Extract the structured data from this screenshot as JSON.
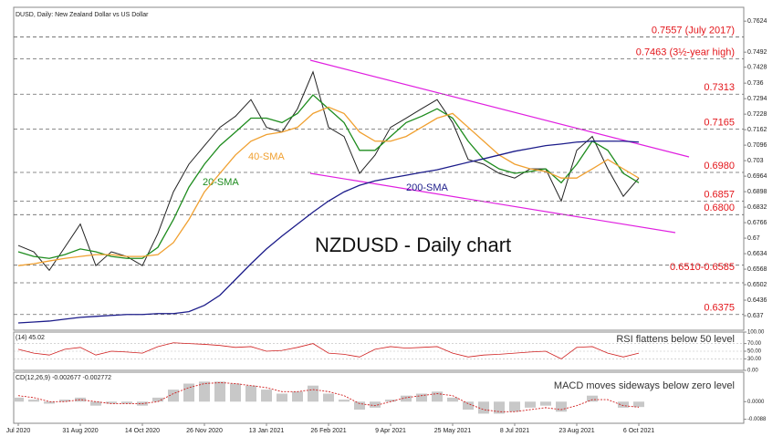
{
  "chart_data": {
    "type": "line",
    "title": "DUSD, Daily:  New Zealand Dollar vs US Dollar",
    "chart_label": "NZDUSD - Daily chart",
    "categories": [
      "Jul 2020",
      null,
      null,
      null,
      "31 Aug 2020",
      null,
      null,
      null,
      "14 Oct 2020",
      null,
      null,
      null,
      "26 Nov 2020",
      null,
      null,
      null,
      "13 Jan 2021",
      null,
      null,
      null,
      "26 Feb 2021",
      null,
      null,
      null,
      "9 Apr 2021",
      null,
      null,
      null,
      "25 May 2021",
      null,
      null,
      null,
      "8 Jul 2021",
      null,
      null,
      null,
      "23 Aug 2021",
      null,
      null,
      null,
      "6 Oct 2021"
    ],
    "series": [
      {
        "color": "#222222",
        "values": [
          0.6669,
          0.6642,
          0.6563,
          0.6661,
          0.676,
          0.6583,
          0.6642,
          0.6622,
          0.6583,
          0.672,
          0.6897,
          0.7015,
          0.7094,
          0.7172,
          0.7219,
          0.729,
          0.7172,
          0.7152,
          0.7251,
          0.7408,
          0.7172,
          0.7133,
          0.6976,
          0.7054,
          0.7172,
          0.7211,
          0.7251,
          0.729,
          0.7192,
          0.7035,
          0.7015,
          0.6976,
          0.6956,
          0.6995,
          0.6995,
          0.6858,
          0.7074,
          0.7133,
          0.6995,
          0.6878,
          0.6956
        ]
      },
      {
        "name": "20-SMA",
        "color": "#1e8c1e",
        "values": [
          0.6642,
          0.6622,
          0.6614,
          0.663,
          0.6654,
          0.6642,
          0.6622,
          0.6614,
          0.6614,
          0.6661,
          0.6779,
          0.6917,
          0.7015,
          0.7094,
          0.7152,
          0.7211,
          0.7211,
          0.7192,
          0.7231,
          0.731,
          0.7251,
          0.7192,
          0.7074,
          0.7074,
          0.7133,
          0.7192,
          0.7219,
          0.7251,
          0.7211,
          0.7113,
          0.7035,
          0.6995,
          0.6976,
          0.6984,
          0.6995,
          0.6936,
          0.7015,
          0.7113,
          0.7074,
          0.6976,
          0.6936
        ]
      },
      {
        "name": "40-SMA",
        "color": "#f0a030",
        "values": [
          0.6583,
          0.6591,
          0.6603,
          0.6614,
          0.6622,
          0.663,
          0.663,
          0.6622,
          0.6622,
          0.663,
          0.6681,
          0.6779,
          0.6897,
          0.6976,
          0.7054,
          0.7113,
          0.7141,
          0.7152,
          0.7172,
          0.7231,
          0.7258,
          0.7231,
          0.7152,
          0.7113,
          0.7113,
          0.7133,
          0.7172,
          0.7211,
          0.7231,
          0.7172,
          0.7113,
          0.7054,
          0.7015,
          0.6995,
          0.6984,
          0.6956,
          0.6956,
          0.6995,
          0.7035,
          0.6995,
          0.6956
        ]
      },
      {
        "name": "200-SMA",
        "color": "#1c1c8a",
        "values": [
          0.6339,
          0.6343,
          0.6347,
          0.6355,
          0.6363,
          0.6367,
          0.6371,
          0.6375,
          0.6375,
          0.6379,
          0.6379,
          0.6387,
          0.6414,
          0.6457,
          0.6524,
          0.6591,
          0.6654,
          0.6709,
          0.676,
          0.6811,
          0.6858,
          0.6897,
          0.6925,
          0.6944,
          0.6956,
          0.6968,
          0.698,
          0.6991,
          0.7007,
          0.7023,
          0.7038,
          0.7054,
          0.707,
          0.7082,
          0.7094,
          0.7101,
          0.7109,
          0.7113,
          0.7113,
          0.7113,
          0.7109
        ]
      }
    ],
    "ylim": [
      0.6308,
      0.7683
    ],
    "yticks": [
      0.7624,
      0.7492,
      0.7428,
      0.736,
      0.7294,
      0.7228,
      0.7162,
      0.7096,
      0.703,
      0.6964,
      0.6898,
      0.6832,
      0.6766,
      0.67,
      0.6634,
      0.6568,
      0.6502,
      0.6436,
      0.637
    ],
    "level_lines": [
      0.7557,
      0.7463,
      0.7313,
      0.7165,
      0.698,
      0.6857,
      0.68,
      0.6585,
      0.651,
      0.6375
    ],
    "level_labels": [
      {
        "value": 0.7557,
        "label": "0.7557 (July 2017)"
      },
      {
        "value": 0.7463,
        "label": "0.7463 (3½-year  high)"
      },
      {
        "value": 0.7313,
        "label": "0.7313"
      },
      {
        "value": 0.7165,
        "label": "0.7165"
      },
      {
        "value": 0.698,
        "label": "0.6980"
      },
      {
        "value": 0.6857,
        "label": "0.6857"
      },
      {
        "value": 0.68,
        "label": "0.6800"
      },
      {
        "value": 0.6548,
        "label": "0.6510-0.6585"
      },
      {
        "value": 0.6375,
        "label": "0.6375"
      }
    ],
    "rsi": {
      "label": "(14) 45.02",
      "note": "RSI flattens below 50 level",
      "color": "#d02020",
      "values": [
        55,
        45,
        40,
        55,
        60,
        40,
        50,
        48,
        45,
        62,
        72,
        70,
        68,
        65,
        60,
        62,
        50,
        52,
        60,
        70,
        45,
        42,
        35,
        55,
        62,
        58,
        60,
        62,
        45,
        35,
        40,
        42,
        45,
        48,
        50,
        30,
        60,
        62,
        45,
        35,
        45.02
      ],
      "ylim": [
        0,
        100
      ],
      "yticks": [
        {
          "value": 100,
          "label": "100.00"
        },
        {
          "value": 70,
          "label": "70.00"
        },
        {
          "value": 50,
          "label": "50.00"
        },
        {
          "value": 30,
          "label": "30.00"
        },
        {
          "value": 0,
          "label": "0.00"
        }
      ]
    },
    "macd": {
      "label": "CD(12,26,9) -0.002677 -0.002772",
      "note": "MACD moves sideways below zero level",
      "color": "#c8c8c8",
      "signal_color": "#d02020",
      "values": [
        0.002,
        0.001,
        -0.001,
        0.001,
        0.002,
        -0.002,
        -0.001,
        -0.001,
        -0.002,
        0.002,
        0.006,
        0.009,
        0.01,
        0.01,
        0.009,
        0.008,
        0.006,
        0.004,
        0.005,
        0.008,
        0.004,
        0.001,
        -0.004,
        -0.003,
        0.001,
        0.003,
        0.004,
        0.005,
        0.002,
        -0.004,
        -0.006,
        -0.006,
        -0.005,
        -0.003,
        -0.002,
        -0.005,
        0.0,
        0.003,
        0.0,
        -0.003,
        -0.002677
      ],
      "signal": [
        0.003,
        0.002,
        0.0,
        0.0,
        0.001,
        0.0,
        -0.001,
        -0.001,
        -0.001,
        0.0,
        0.004,
        0.007,
        0.009,
        0.0095,
        0.009,
        0.008,
        0.007,
        0.005,
        0.005,
        0.006,
        0.005,
        0.003,
        -0.001,
        -0.002,
        0.0,
        0.002,
        0.003,
        0.004,
        0.003,
        -0.001,
        -0.004,
        -0.005,
        -0.005,
        -0.004,
        -0.003,
        -0.004,
        -0.002,
        0.001,
        0.001,
        -0.002,
        -0.002772
      ],
      "ylim": [
        -0.0108,
        0.0147
      ],
      "yticks": [
        {
          "value": 0,
          "label": "0.0000"
        },
        {
          "value": -0.0088,
          "label": "-0.0088"
        }
      ]
    }
  }
}
